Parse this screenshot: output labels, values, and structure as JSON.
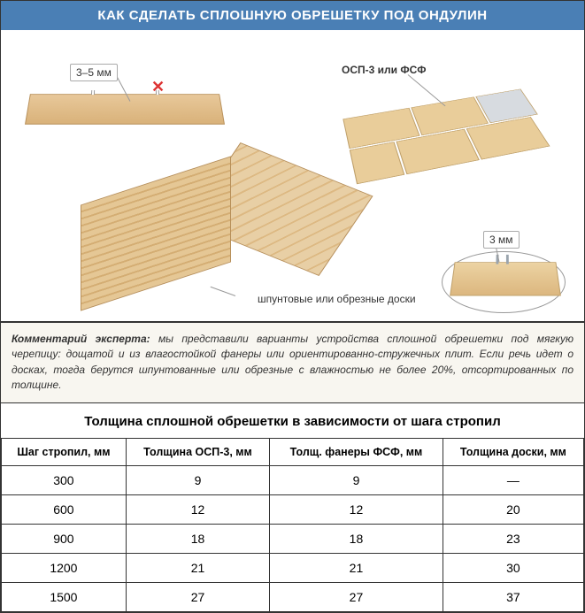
{
  "header": {
    "title": "КАК СДЕЛАТЬ СПЛОШНУЮ ОБРЕШЕТКУ ПОД ОНДУЛИН"
  },
  "diagram": {
    "gap_label": "3–5 мм",
    "osb_label": "ОСП-3 или ФСФ",
    "boards_label": "шпунтовые или обрезные доски",
    "nail_gap_label": "3 мм"
  },
  "comment": {
    "lead": "Комментарий эксперта:",
    "text": " мы представили варианты устройства сплошной обрешетки под мягкую черепицу: дощатой и из влагостойкой фанеры или ориентированно-стружечных плит. Если речь идет о досках, тогда берутся шпунтованные или обрезные с влажностью не более 20%, отсортированных по толщине."
  },
  "table": {
    "title": "Толщина сплошной обрешетки в зависимости от шага стропил",
    "columns": [
      "Шаг стропил, мм",
      "Толщина ОСП-3, мм",
      "Толщ. фанеры ФСФ, мм",
      "Толщина доски, мм"
    ],
    "rows": [
      [
        "300",
        "9",
        "9",
        "—"
      ],
      [
        "600",
        "12",
        "12",
        "20"
      ],
      [
        "900",
        "18",
        "18",
        "23"
      ],
      [
        "1200",
        "21",
        "21",
        "30"
      ],
      [
        "1500",
        "27",
        "27",
        "37"
      ]
    ]
  },
  "colors": {
    "header_bg": "#4a7fb5",
    "header_text": "#ffffff",
    "comment_bg": "#f8f6f0",
    "border": "#333333",
    "wood_light": "#e8c89a",
    "wood_dark": "#d9b27a",
    "x_mark": "#d33333"
  }
}
